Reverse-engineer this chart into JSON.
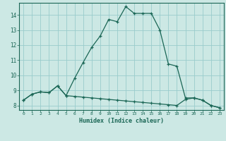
{
  "xlabel": "Humidex (Indice chaleur)",
  "bg_color": "#cce8e4",
  "grid_color": "#99cccc",
  "line_color": "#1a6655",
  "xlim": [
    -0.5,
    23.5
  ],
  "ylim": [
    7.7,
    14.8
  ],
  "yticks": [
    8,
    9,
    10,
    11,
    12,
    13,
    14
  ],
  "xticks": [
    0,
    1,
    2,
    3,
    4,
    5,
    6,
    7,
    8,
    9,
    10,
    11,
    12,
    13,
    14,
    15,
    16,
    17,
    18,
    19,
    20,
    21,
    22,
    23
  ],
  "line1_x": [
    0,
    1,
    2,
    3,
    4,
    5,
    6,
    7,
    8,
    9,
    10,
    11,
    12,
    13,
    14,
    15,
    16,
    17,
    18,
    19,
    20,
    21,
    22,
    23
  ],
  "line1_y": [
    8.35,
    8.75,
    8.9,
    8.85,
    9.3,
    8.65,
    9.8,
    10.85,
    11.85,
    12.6,
    13.7,
    13.55,
    14.55,
    14.1,
    14.1,
    14.1,
    13.0,
    10.75,
    10.6,
    8.5,
    8.5,
    8.35,
    8.0,
    7.85
  ],
  "line2_x": [
    0,
    1,
    2,
    3,
    4,
    5,
    6,
    7,
    8,
    9,
    10,
    11,
    12,
    13,
    14,
    15,
    16,
    17,
    18,
    19,
    20,
    21,
    22,
    23
  ],
  "line2_y": [
    8.35,
    8.75,
    8.9,
    8.85,
    9.3,
    8.65,
    8.6,
    8.55,
    8.5,
    8.45,
    8.4,
    8.35,
    8.3,
    8.25,
    8.2,
    8.15,
    8.1,
    8.05,
    8.0,
    8.4,
    8.5,
    8.35,
    8.0,
    7.85
  ]
}
